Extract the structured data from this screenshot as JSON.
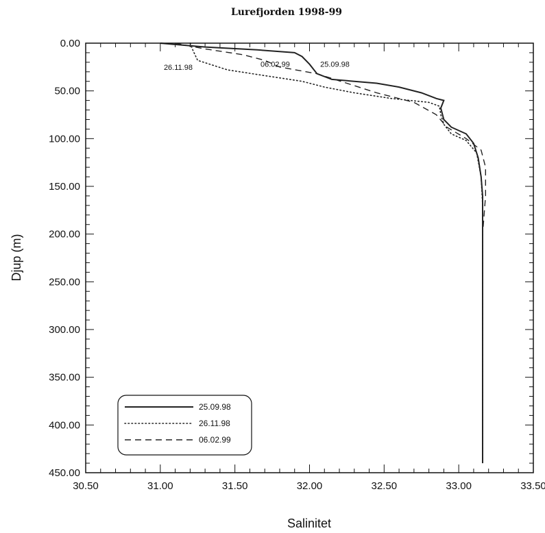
{
  "chart_data": {
    "type": "line",
    "title": "Lurefjorden 1998-99",
    "xlabel": "Salinitet",
    "ylabel": "Djup (m)",
    "xlim": [
      30.5,
      33.5
    ],
    "ylim": [
      0,
      450
    ],
    "y_inverted": true,
    "x_ticks": [
      "30.50",
      "31.00",
      "31.50",
      "32.00",
      "32.50",
      "33.00",
      "33.50"
    ],
    "y_ticks": [
      "0.00",
      "50.00",
      "100.00",
      "150.00",
      "200.00",
      "250.00",
      "300.00",
      "350.00",
      "400.00",
      "450.00"
    ],
    "grid": false,
    "legend_position": "bottom-left",
    "series": [
      {
        "name": "25.09.98",
        "style": "solid",
        "points": [
          [
            31.0,
            0
          ],
          [
            31.3,
            4
          ],
          [
            31.65,
            7
          ],
          [
            31.9,
            10
          ],
          [
            31.95,
            14
          ],
          [
            32.0,
            22
          ],
          [
            32.05,
            32
          ],
          [
            32.15,
            38
          ],
          [
            32.45,
            42
          ],
          [
            32.6,
            46
          ],
          [
            32.75,
            52
          ],
          [
            32.85,
            58
          ],
          [
            32.9,
            60
          ],
          [
            32.88,
            68
          ],
          [
            32.9,
            80
          ],
          [
            32.95,
            88
          ],
          [
            33.05,
            95
          ],
          [
            33.1,
            105
          ],
          [
            33.13,
            120
          ],
          [
            33.15,
            140
          ],
          [
            33.16,
            160
          ],
          [
            33.16,
            200
          ],
          [
            33.16,
            300
          ],
          [
            33.16,
            440
          ]
        ]
      },
      {
        "name": "26.11.98",
        "style": "dotted",
        "points": [
          [
            31.2,
            0
          ],
          [
            31.22,
            8
          ],
          [
            31.25,
            18
          ],
          [
            31.45,
            28
          ],
          [
            31.7,
            34
          ],
          [
            31.95,
            40
          ],
          [
            32.1,
            46
          ],
          [
            32.3,
            52
          ],
          [
            32.55,
            58
          ],
          [
            32.8,
            62
          ],
          [
            32.87,
            66
          ],
          [
            32.88,
            75
          ],
          [
            32.9,
            85
          ],
          [
            32.95,
            95
          ],
          [
            33.05,
            102
          ],
          [
            33.12,
            115
          ],
          [
            33.15,
            140
          ],
          [
            33.16,
            170
          ],
          [
            33.16,
            440
          ]
        ]
      },
      {
        "name": "06.02.99",
        "style": "dashed",
        "points": [
          [
            31.1,
            0
          ],
          [
            31.3,
            6
          ],
          [
            31.55,
            12
          ],
          [
            31.7,
            18
          ],
          [
            31.8,
            25
          ],
          [
            32.05,
            32
          ],
          [
            32.25,
            42
          ],
          [
            32.45,
            52
          ],
          [
            32.7,
            62
          ],
          [
            32.85,
            75
          ],
          [
            32.92,
            88
          ],
          [
            33.05,
            100
          ],
          [
            33.15,
            112
          ],
          [
            33.18,
            130
          ],
          [
            33.18,
            160
          ],
          [
            33.16,
            200
          ],
          [
            33.16,
            440
          ]
        ]
      }
    ],
    "annotations": [
      {
        "text": "26.11.98",
        "x": 31.12,
        "y": 25
      },
      {
        "text": "06.02.99",
        "x": 31.77,
        "y": 22
      },
      {
        "text": "25.09.98",
        "x": 32.17,
        "y": 22
      }
    ]
  }
}
